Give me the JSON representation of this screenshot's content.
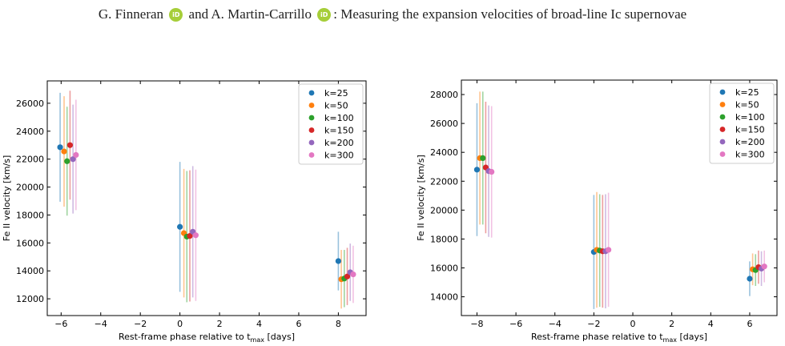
{
  "header": {
    "author1": "G. Finneran",
    "orcid_label": "iD",
    "conj": "and",
    "author2": "A. Martin-Carrillo",
    "title": ": Measuring the expansion velocities of broad-line Ic supernovae"
  },
  "colors": {
    "k25": "#1f77b4",
    "k50": "#ff7f0e",
    "k100": "#2ca02c",
    "k150": "#d62728",
    "k200": "#9467bd",
    "k300": "#e377c2",
    "orcid": "#a6ce39"
  },
  "chart_data": [
    {
      "type": "scatter",
      "xlabel_main": "Rest-frame phase relative to t",
      "xlabel_sub": "max",
      "xlabel_tail": " [days]",
      "ylabel": "Fe II velocity [km/s]",
      "xlim": [
        -6.7,
        9.4
      ],
      "ylim": [
        10800,
        27600
      ],
      "xticks": [
        -6,
        -4,
        -2,
        0,
        2,
        4,
        6,
        8
      ],
      "yticks": [
        12000,
        14000,
        16000,
        18000,
        20000,
        22000,
        24000,
        26000
      ],
      "legend_position": "top-right",
      "series": [
        {
          "name": "k=25",
          "color_key": "k25",
          "x": [
            -6.05,
            0.0,
            8.0
          ],
          "y": [
            22850,
            17150,
            14700
          ],
          "err": [
            3900,
            4650,
            2100
          ]
        },
        {
          "name": "k=50",
          "color_key": "k50",
          "x": [
            -5.85,
            0.2,
            8.15
          ],
          "y": [
            22550,
            16700,
            13400
          ],
          "err": [
            3950,
            4600,
            2100
          ]
        },
        {
          "name": "k=100",
          "color_key": "k100",
          "x": [
            -5.7,
            0.35,
            8.3
          ],
          "y": [
            21850,
            16450,
            13450
          ],
          "err": [
            3900,
            4700,
            2050
          ]
        },
        {
          "name": "k=150",
          "color_key": "k150",
          "x": [
            -5.55,
            0.5,
            8.45
          ],
          "y": [
            23000,
            16500,
            13600
          ],
          "err": [
            3900,
            4700,
            2050
          ]
        },
        {
          "name": "k=200",
          "color_key": "k200",
          "x": [
            -5.4,
            0.65,
            8.6
          ],
          "y": [
            22000,
            16800,
            13900
          ],
          "err": [
            3900,
            4700,
            2050
          ]
        },
        {
          "name": "k=300",
          "color_key": "k300",
          "x": [
            -5.25,
            0.8,
            8.75
          ],
          "y": [
            22300,
            16550,
            13750
          ],
          "err": [
            3950,
            4700,
            2050
          ]
        }
      ]
    },
    {
      "type": "scatter",
      "xlabel_main": "Rest-frame phase relative to t",
      "xlabel_sub": "max",
      "xlabel_tail": " [days]",
      "ylabel": "Fe II velocity [km/s]",
      "xlim": [
        -8.8,
        7.4
      ],
      "ylim": [
        12700,
        29000
      ],
      "xticks": [
        -8,
        -6,
        -4,
        -2,
        0,
        2,
        4,
        6
      ],
      "yticks": [
        14000,
        16000,
        18000,
        20000,
        22000,
        24000,
        26000,
        28000
      ],
      "legend_position": "top-right",
      "series": [
        {
          "name": "k=25",
          "color_key": "k25",
          "x": [
            -8.0,
            -2.0,
            6.0
          ],
          "y": [
            22800,
            17100,
            15250
          ],
          "err": [
            4600,
            3950,
            1200
          ]
        },
        {
          "name": "k=50",
          "color_key": "k50",
          "x": [
            -7.85,
            -1.85,
            6.15
          ],
          "y": [
            23600,
            17250,
            15900
          ],
          "err": [
            4600,
            4000,
            1100
          ]
        },
        {
          "name": "k=100",
          "color_key": "k100",
          "x": [
            -7.7,
            -1.7,
            6.3
          ],
          "y": [
            23600,
            17200,
            15850
          ],
          "err": [
            4600,
            3900,
            1100
          ]
        },
        {
          "name": "k=150",
          "color_key": "k150",
          "x": [
            -7.55,
            -1.55,
            6.45
          ],
          "y": [
            22950,
            17150,
            16050
          ],
          "err": [
            4550,
            3900,
            1150
          ]
        },
        {
          "name": "k=200",
          "color_key": "k200",
          "x": [
            -7.4,
            -1.4,
            6.6
          ],
          "y": [
            22700,
            17150,
            15950
          ],
          "err": [
            4550,
            3950,
            1200
          ]
        },
        {
          "name": "k=300",
          "color_key": "k300",
          "x": [
            -7.25,
            -1.25,
            6.75
          ],
          "y": [
            22650,
            17250,
            16100
          ],
          "err": [
            4550,
            3950,
            1100
          ]
        }
      ]
    }
  ]
}
